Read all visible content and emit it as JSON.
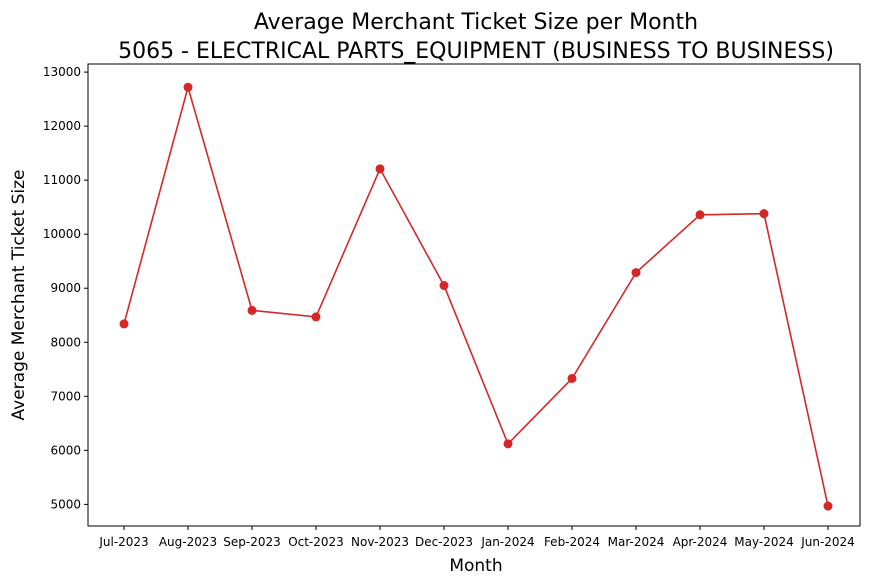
{
  "chart_data": {
    "type": "line",
    "title": "Average Merchant Ticket Size per Month",
    "subtitle": "5065 - ELECTRICAL PARTS_EQUIPMENT (BUSINESS TO BUSINESS)",
    "xlabel": "Month",
    "ylabel": "Average Merchant Ticket Size",
    "categories": [
      "Jul-2023",
      "Aug-2023",
      "Sep-2023",
      "Oct-2023",
      "Nov-2023",
      "Dec-2023",
      "Jan-2024",
      "Feb-2024",
      "Mar-2024",
      "Apr-2024",
      "May-2024",
      "Jun-2024"
    ],
    "series": [
      {
        "values": [
          8340,
          12720,
          8590,
          8470,
          11210,
          9050,
          6120,
          7330,
          9290,
          10360,
          10380,
          4970
        ],
        "color": "#d62728",
        "marker": "circle"
      }
    ],
    "ylim": [
      4600,
      13150
    ],
    "yticks": [
      5000,
      6000,
      7000,
      8000,
      9000,
      10000,
      11000,
      12000,
      13000
    ],
    "grid": false,
    "legend": "none"
  }
}
